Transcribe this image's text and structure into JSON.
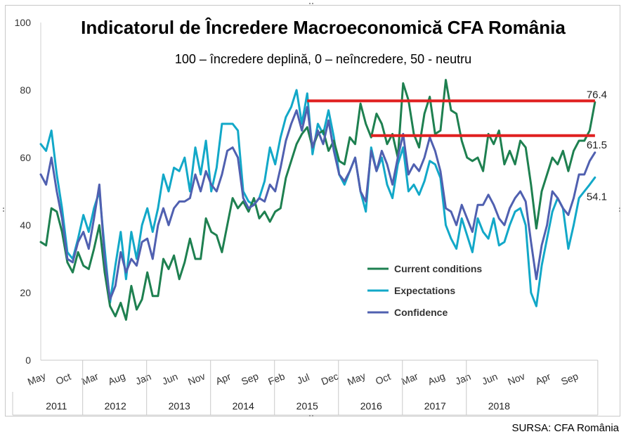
{
  "chart_data": {
    "type": "line",
    "title": "Indicatorul de Încredere Macroeconomică CFA România",
    "subtitle": "100 – încredere deplină, 0 – neîncredere, 50 - neutru",
    "ylim": [
      0,
      100
    ],
    "y_ticks": [
      0,
      20,
      40,
      60,
      80,
      100
    ],
    "month_ticks": [
      {
        "label": "May",
        "index": 0
      },
      {
        "label": "Oct",
        "index": 5
      },
      {
        "label": "Mar",
        "index": 10
      },
      {
        "label": "Aug",
        "index": 15
      },
      {
        "label": "Jan",
        "index": 20
      },
      {
        "label": "Jun",
        "index": 25
      },
      {
        "label": "Nov",
        "index": 30
      },
      {
        "label": "Apr",
        "index": 35
      },
      {
        "label": "Sep",
        "index": 40
      },
      {
        "label": "Feb",
        "index": 45
      },
      {
        "label": "Jul",
        "index": 50
      },
      {
        "label": "Dec",
        "index": 55
      },
      {
        "label": "May",
        "index": 60
      },
      {
        "label": "Oct",
        "index": 65
      },
      {
        "label": "Mar",
        "index": 70
      },
      {
        "label": "Aug",
        "index": 75
      },
      {
        "label": "Jan",
        "index": 80
      },
      {
        "label": "Jun",
        "index": 85
      },
      {
        "label": "Nov",
        "index": 90
      },
      {
        "label": "Apr",
        "index": 95
      },
      {
        "label": "Sep",
        "index": 100
      }
    ],
    "years": [
      {
        "label": "2011",
        "start": 0,
        "end": 8
      },
      {
        "label": "2012",
        "start": 8,
        "end": 20
      },
      {
        "label": "2013",
        "start": 20,
        "end": 32
      },
      {
        "label": "2014",
        "start": 32,
        "end": 44
      },
      {
        "label": "2015",
        "start": 44,
        "end": 56
      },
      {
        "label": "2016",
        "start": 56,
        "end": 68
      },
      {
        "label": "2017",
        "start": 68,
        "end": 80
      },
      {
        "label": "2018",
        "start": 80,
        "end": 92
      }
    ],
    "series": [
      {
        "name": "Current conditions",
        "color": "#1e8050",
        "values": [
          35,
          34,
          45,
          44,
          38,
          29,
          26,
          32,
          28,
          27,
          33,
          40,
          26,
          16,
          13,
          17,
          12,
          22,
          15,
          18,
          26,
          19,
          19,
          30,
          27,
          31,
          24,
          29,
          36,
          30,
          30,
          42,
          38,
          37,
          32,
          40,
          48,
          45,
          47,
          44,
          48,
          42,
          44,
          41,
          44,
          45,
          54,
          59,
          64,
          67,
          69,
          63,
          67,
          68,
          62,
          65,
          59,
          58,
          66,
          64,
          76,
          70,
          66,
          73,
          70,
          64,
          67,
          60,
          82,
          77,
          67,
          63,
          73,
          78,
          67,
          68,
          83,
          74,
          73,
          65,
          60,
          59,
          60,
          56,
          67,
          64,
          68,
          58,
          62,
          58,
          65,
          63,
          52,
          39,
          50,
          55,
          60,
          58,
          62,
          56,
          62,
          65,
          65,
          68,
          76.4
        ]
      },
      {
        "name": "Expectations",
        "color": "#12a8c8",
        "values": [
          64,
          62,
          68,
          55,
          45,
          32,
          30,
          36,
          43,
          38,
          45,
          50,
          33,
          17,
          28,
          38,
          24,
          38,
          30,
          40,
          45,
          38,
          45,
          55,
          50,
          57,
          56,
          60,
          50,
          63,
          55,
          65,
          50,
          57,
          70,
          70,
          70,
          68,
          50,
          47,
          46,
          48,
          53,
          63,
          58,
          66,
          72,
          75,
          80,
          70,
          79,
          61,
          70,
          67,
          74,
          66,
          55,
          52,
          56,
          60,
          50,
          44,
          63,
          56,
          60,
          52,
          48,
          58,
          63,
          50,
          52,
          49,
          53,
          59,
          58,
          54,
          40,
          36,
          33,
          42,
          37,
          32,
          42,
          38,
          36,
          42,
          34,
          35,
          40,
          44,
          45,
          40,
          20,
          16,
          28,
          36,
          44,
          48,
          45,
          33,
          40,
          48,
          50,
          52,
          54.1
        ]
      },
      {
        "name": "Confidence",
        "color": "#5060b0",
        "values": [
          55,
          52,
          60,
          50,
          42,
          30,
          29,
          35,
          38,
          33,
          42,
          52,
          30,
          18,
          22,
          32,
          26,
          30,
          28,
          35,
          36,
          30,
          40,
          45,
          40,
          45,
          47,
          47,
          48,
          55,
          50,
          56,
          52,
          50,
          55,
          62,
          63,
          60,
          48,
          45,
          46,
          48,
          47,
          52,
          50,
          57,
          65,
          70,
          74,
          68,
          75,
          63,
          68,
          64,
          71,
          62,
          55,
          53,
          56,
          60,
          50,
          47,
          62,
          56,
          62,
          58,
          52,
          60,
          67,
          55,
          58,
          56,
          60,
          66,
          62,
          56,
          45,
          44,
          40,
          46,
          42,
          38,
          46,
          46,
          49,
          46,
          42,
          40,
          45,
          48,
          50,
          47,
          35,
          24,
          34,
          40,
          50,
          48,
          45,
          43,
          48,
          55,
          55,
          59,
          61.5
        ]
      }
    ],
    "reference_lines": [
      {
        "y": 76.8,
        "x_start": 50,
        "x_end": 104,
        "color": "#e02020"
      },
      {
        "y": 66.5,
        "x_start": 62,
        "x_end": 104,
        "color": "#e02020"
      }
    ],
    "end_labels": [
      {
        "text": "76.4",
        "series": 0
      },
      {
        "text": "61.5",
        "series": 2
      },
      {
        "text": "54.1",
        "series": 1
      }
    ],
    "legend_position": "center-bottom"
  },
  "source": "SURSA: CFA România"
}
